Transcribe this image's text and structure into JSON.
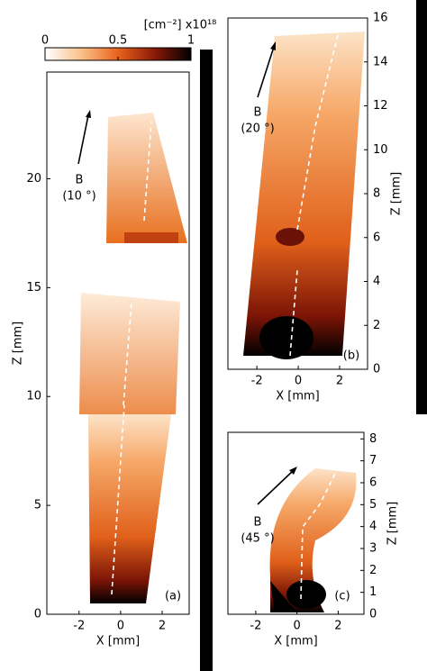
{
  "chart_data": [
    {
      "type": "heatmap",
      "xlabel": "X [mm]",
      "ylabel": "Z [mm]",
      "xlim": [
        -3.55,
        3.3
      ],
      "ylim": [
        0,
        24.9
      ],
      "xticks": [
        -2,
        0,
        2
      ],
      "yticks": [
        0,
        5,
        10,
        15,
        20
      ],
      "yaxis_side": "left",
      "field_label": "B",
      "field_angle": "(10 °)",
      "panel_label": "(a)",
      "colorbar": {
        "label": "[cm⁻²] x10¹⁸",
        "lim": [
          0,
          1
        ],
        "ticks": [
          0,
          0.5,
          1
        ]
      }
    },
    {
      "type": "heatmap",
      "xlabel": "X [mm]",
      "ylabel": "Z [mm]",
      "xlim": [
        -3.4,
        3.35
      ],
      "ylim": [
        0,
        16
      ],
      "xticks": [
        -2,
        0,
        2
      ],
      "yticks": [
        0,
        2,
        4,
        6,
        8,
        10,
        12,
        14,
        16
      ],
      "yaxis_side": "right",
      "field_label": "B",
      "field_angle": "(20 °)",
      "panel_label": "(b)"
    },
    {
      "type": "heatmap",
      "xlabel": "X [mm]",
      "ylabel": "Z [mm]",
      "xlim": [
        -3.35,
        3.25
      ],
      "ylim": [
        0,
        8.3
      ],
      "xticks": [
        -2,
        0,
        2
      ],
      "yticks": [
        0,
        1,
        2,
        3,
        4,
        5,
        6,
        7,
        8
      ],
      "yaxis_side": "right",
      "field_label": "B",
      "field_angle": "(45 °)",
      "panel_label": "(c)"
    }
  ]
}
